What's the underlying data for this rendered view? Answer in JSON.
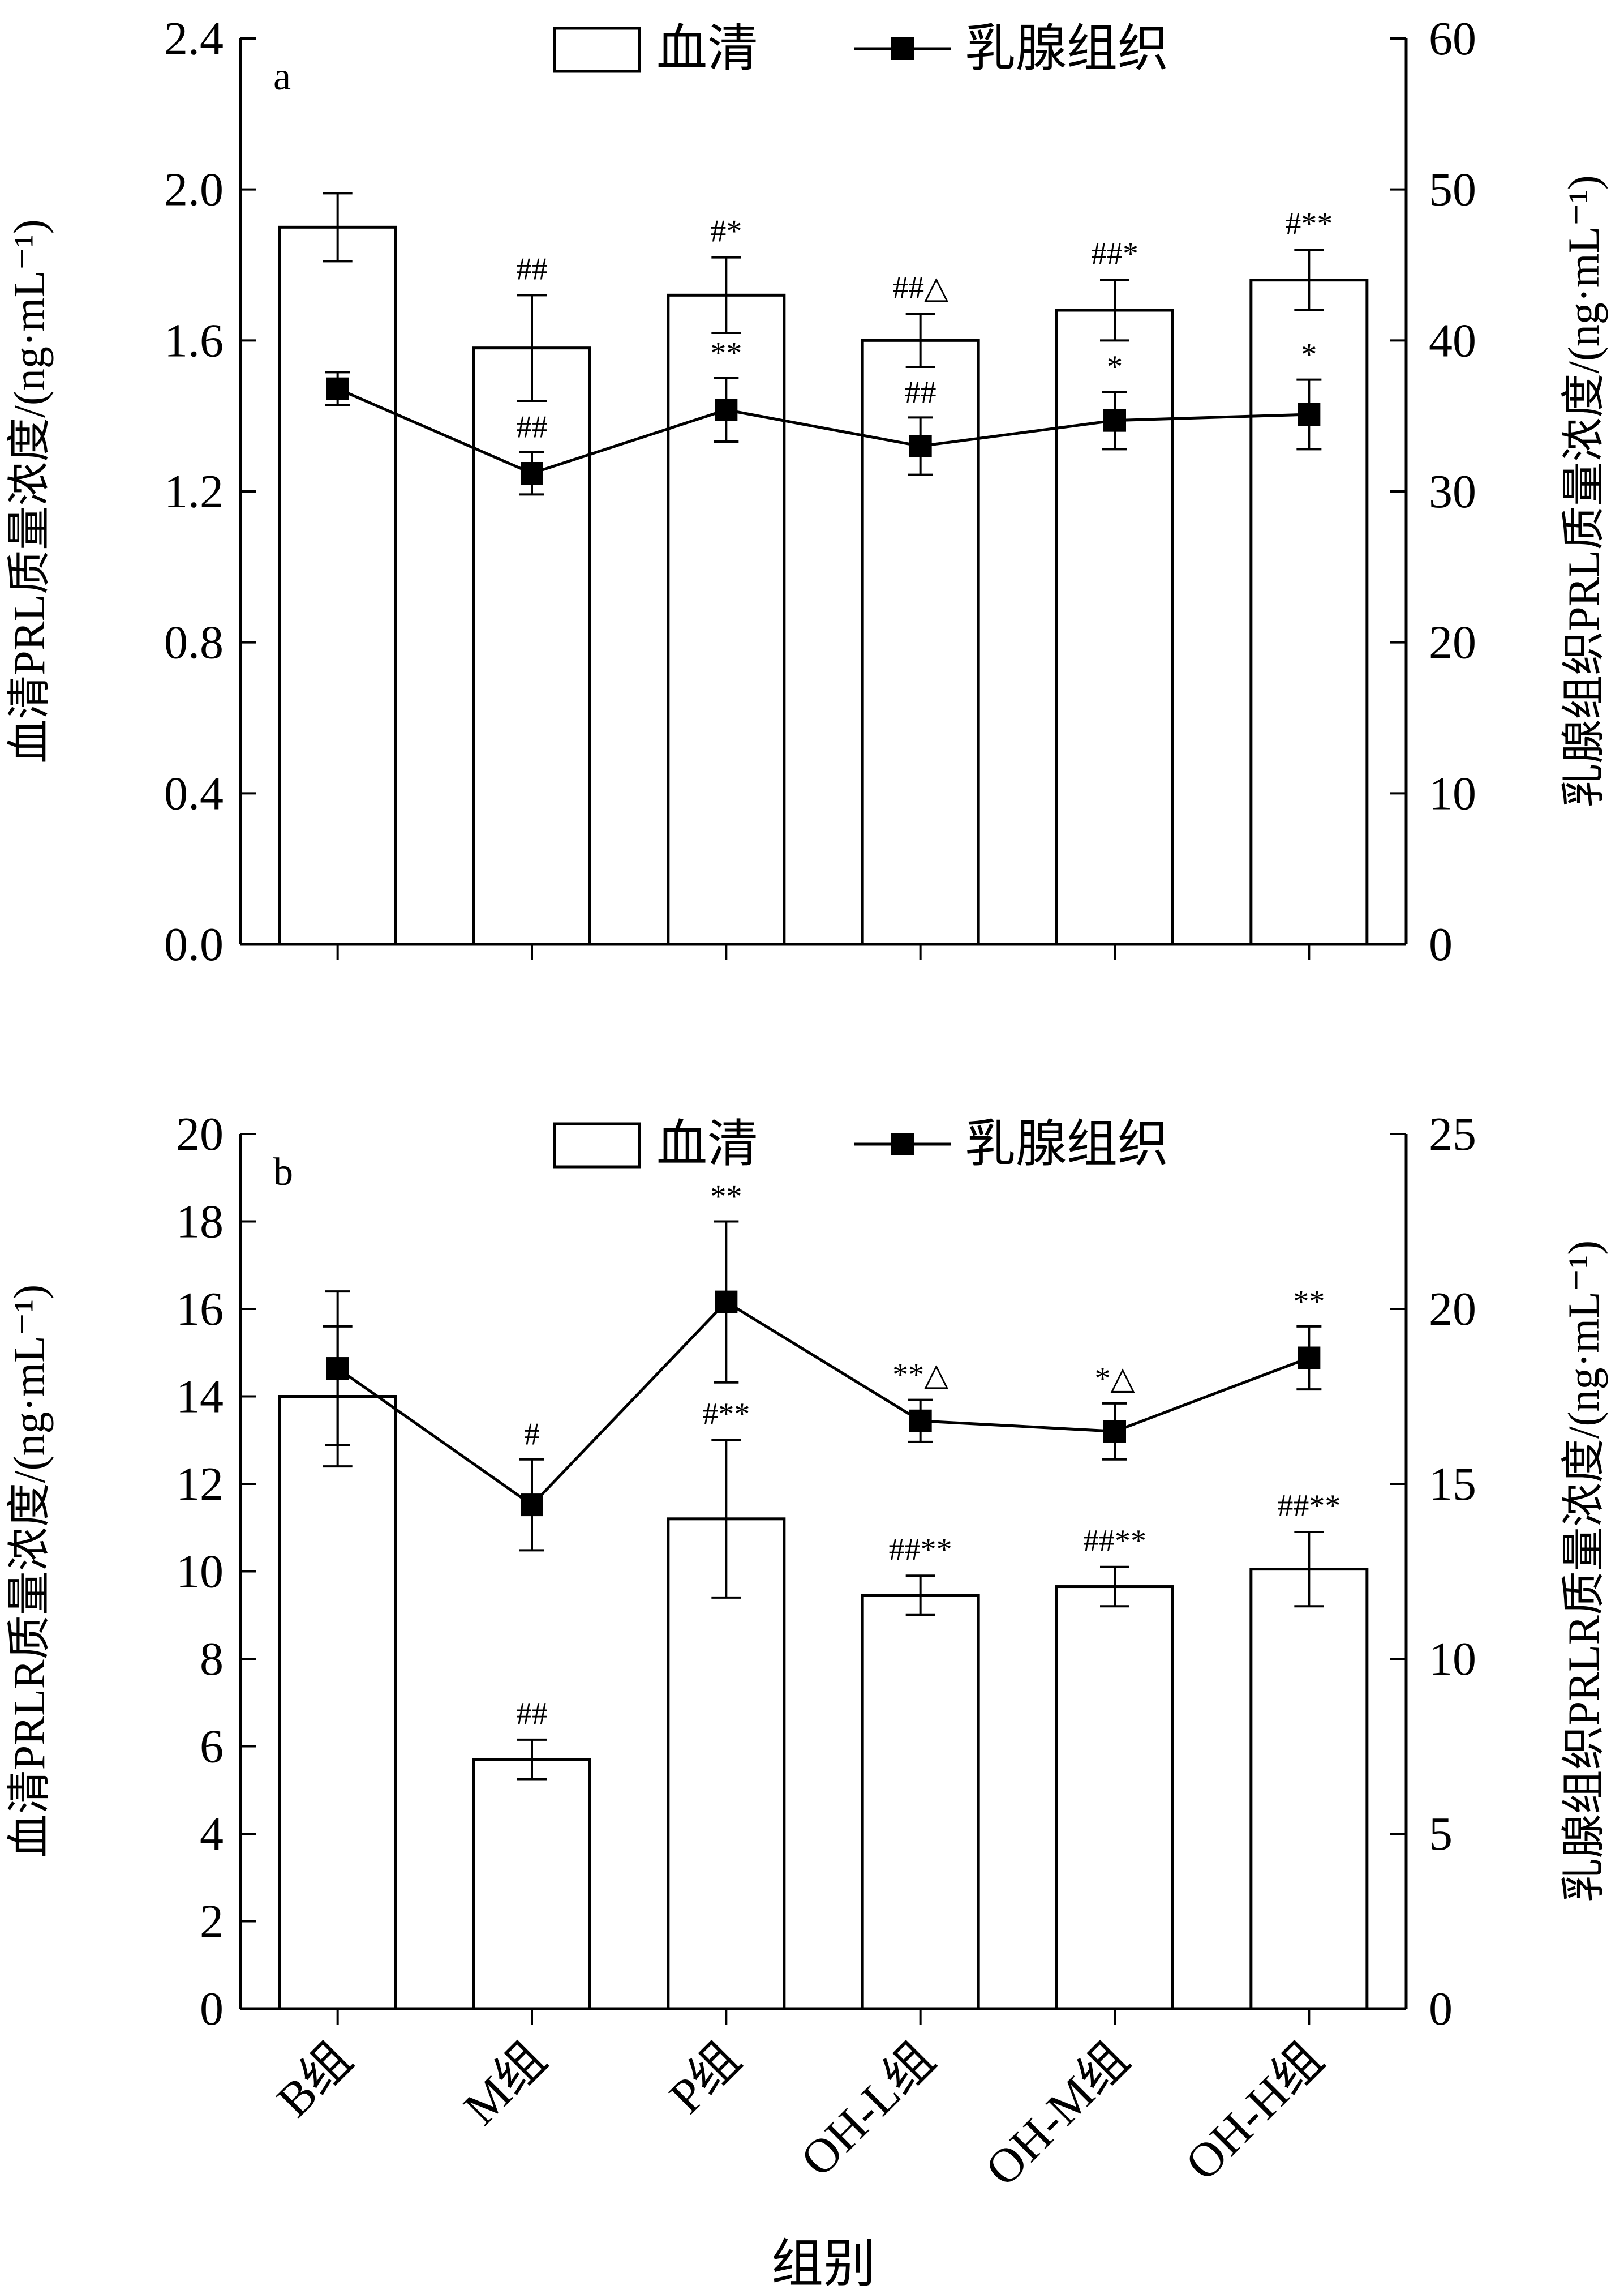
{
  "chart_data": [
    {
      "type": "bar+line",
      "panel_label": "a",
      "categories": [
        "B组",
        "M组",
        "P组",
        "OH-L组",
        "OH-M组",
        "OH-H组"
      ],
      "ylabel_left": "血清PRL质量浓度/(ng·mL⁻¹)",
      "ylabel_right": "乳腺组织PRL质量浓度/(ng·mL⁻¹)",
      "ylim_left": [
        0,
        2.4
      ],
      "ylim_right": [
        0,
        60
      ],
      "yticks_left": [
        "0.0",
        "0.4",
        "0.8",
        "1.2",
        "1.6",
        "2.0",
        "2.4"
      ],
      "yticks_right": [
        "0",
        "10",
        "20",
        "30",
        "40",
        "50",
        "60"
      ],
      "legend": {
        "bar": "血清",
        "line": "乳腺组织",
        "placement": "top-center"
      },
      "series": [
        {
          "name": "血清",
          "kind": "bar",
          "axis": "left",
          "values": [
            1.9,
            1.58,
            1.72,
            1.6,
            1.68,
            1.76
          ],
          "errors": [
            0.09,
            0.14,
            0.1,
            0.07,
            0.08,
            0.08
          ],
          "annotations": [
            "",
            "##",
            "#*",
            "##△",
            "##*",
            "#**"
          ]
        },
        {
          "name": "乳腺组织",
          "kind": "line",
          "axis": "right",
          "values": [
            36.8,
            31.2,
            35.4,
            33.0,
            34.7,
            35.1
          ],
          "errors": [
            1.1,
            1.4,
            2.1,
            1.9,
            1.9,
            2.3
          ],
          "annotations": [
            "",
            "##",
            "**",
            "##",
            "*",
            "*"
          ]
        }
      ]
    },
    {
      "type": "bar+line",
      "panel_label": "b",
      "categories": [
        "B组",
        "M组",
        "P组",
        "OH-L组",
        "OH-M组",
        "OH-H组"
      ],
      "xlabel": "组别",
      "ylabel_left": "血清PRLR质量浓度/(ng·mL⁻¹)",
      "ylabel_right": "乳腺组织PRLR质量浓度/(ng·mL⁻¹)",
      "ylim_left": [
        0,
        20
      ],
      "ylim_right": [
        0,
        25
      ],
      "yticks_left": [
        "0",
        "2",
        "4",
        "6",
        "8",
        "10",
        "12",
        "14",
        "16",
        "18",
        "20"
      ],
      "yticks_right": [
        "0",
        "5",
        "10",
        "15",
        "20",
        "25"
      ],
      "legend": {
        "bar": "血清",
        "line": "乳腺组织",
        "placement": "top-center"
      },
      "series": [
        {
          "name": "血清",
          "kind": "bar",
          "axis": "left",
          "values": [
            14.0,
            5.7,
            11.2,
            9.45,
            9.65,
            10.05
          ],
          "errors": [
            1.6,
            0.45,
            1.8,
            0.45,
            0.45,
            0.85
          ],
          "annotations": [
            "",
            "##",
            "#**",
            "##**",
            "##**",
            "##**"
          ]
        },
        {
          "name": "乳腺组织",
          "kind": "line",
          "axis": "right",
          "values": [
            18.3,
            14.4,
            20.2,
            16.8,
            16.5,
            18.6
          ],
          "errors": [
            2.2,
            1.3,
            2.3,
            0.6,
            0.8,
            0.9
          ],
          "annotations": [
            "",
            "#",
            "**",
            "**△",
            "*△",
            "**"
          ]
        }
      ]
    }
  ]
}
